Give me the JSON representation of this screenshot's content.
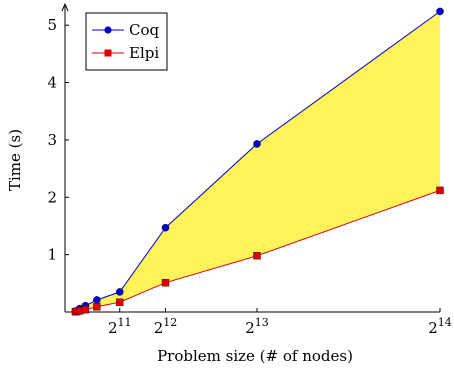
{
  "chart_data": {
    "type": "line",
    "title": "",
    "xlabel": "Problem size (# of nodes)",
    "ylabel": "Time (s)",
    "x_scale": "linear",
    "x_ticks": [
      {
        "value": 2048,
        "base": "2",
        "exp": "11"
      },
      {
        "value": 4096,
        "base": "2",
        "exp": "12"
      },
      {
        "value": 8192,
        "base": "2",
        "exp": "13"
      },
      {
        "value": 16384,
        "base": "2",
        "exp": "14"
      }
    ],
    "y_ticks": [
      1,
      2,
      3,
      4,
      5
    ],
    "xlim": [
      0,
      16384
    ],
    "ylim": [
      0,
      5.3
    ],
    "legend_position": "top-left",
    "fill_between_color": "#fff35a",
    "x": [
      64,
      128,
      256,
      512,
      1024,
      2048,
      4096,
      8192,
      16384
    ],
    "series": [
      {
        "name": "Coq",
        "color": "#0000cc",
        "marker": "circle",
        "values": [
          0.01,
          0.02,
          0.06,
          0.11,
          0.21,
          0.35,
          1.47,
          2.93,
          5.24
        ]
      },
      {
        "name": "Elpi",
        "color": "#dd0000",
        "marker": "square",
        "values": [
          0.005,
          0.01,
          0.02,
          0.04,
          0.09,
          0.17,
          0.51,
          0.98,
          2.12
        ]
      }
    ]
  }
}
